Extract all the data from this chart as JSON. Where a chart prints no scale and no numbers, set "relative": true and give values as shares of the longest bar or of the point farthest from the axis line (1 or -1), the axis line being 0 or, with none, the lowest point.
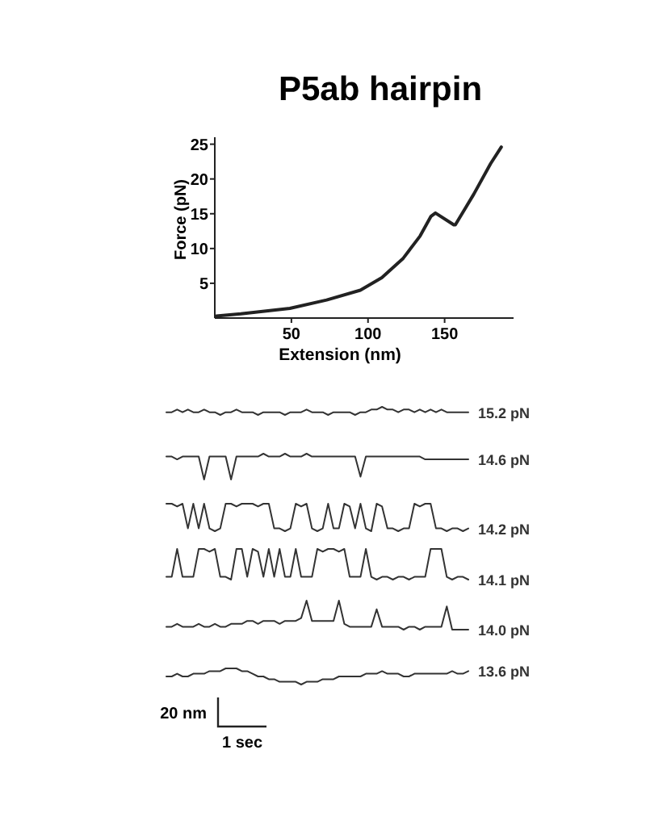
{
  "chart_data": [
    {
      "type": "line",
      "title": "P5ab hairpin",
      "xlabel": "Extension (nm)",
      "ylabel": "Force (pN)",
      "xlim": [
        0,
        195
      ],
      "ylim": [
        0,
        26
      ],
      "xticks": [
        50,
        100,
        150
      ],
      "yticks": [
        5,
        10,
        15,
        20,
        25
      ],
      "grid": false,
      "legend": false,
      "marker": "none",
      "line_style": "solid",
      "series": [
        {
          "color": "#222222",
          "x": [
            1,
            17,
            49,
            73,
            95,
            109,
            123,
            134,
            141,
            144,
            156,
            157,
            169,
            180,
            187
          ],
          "values": [
            0.3,
            0.6,
            1.4,
            2.6,
            4,
            5.8,
            8.6,
            11.8,
            14.6,
            15.1,
            13.4,
            13.4,
            17.8,
            22.2,
            24.6
          ]
        }
      ]
    },
    {
      "type": "line",
      "relative": true,
      "legend": false,
      "marker": "none",
      "line_style": "solid",
      "categories": [
        null,
        null,
        null,
        null,
        null,
        null,
        null,
        null,
        null,
        null,
        null,
        null,
        null,
        null,
        null,
        null,
        null,
        null,
        null,
        null,
        null,
        null,
        null,
        null,
        null,
        null,
        null,
        null,
        null,
        null,
        null,
        null,
        null,
        null,
        null,
        null,
        null,
        null,
        null,
        null,
        null,
        null,
        null,
        null,
        null,
        null,
        null,
        null,
        null,
        null,
        null,
        null,
        null,
        null,
        null,
        null,
        null
      ],
      "series": [
        {
          "name": "15.2 pN",
          "color": "#333333",
          "values": [
            0.33,
            0.33,
            0.67,
            0.33,
            0.67,
            0.33,
            0.33,
            0.67,
            0.33,
            0.33,
            0,
            0.33,
            0.33,
            0.67,
            0.33,
            0.33,
            0.33,
            0,
            0.33,
            0.33,
            0.33,
            0.33,
            0,
            0.33,
            0.33,
            0.33,
            0.67,
            0.33,
            0.33,
            0.33,
            0,
            0.33,
            0.33,
            0.33,
            0.33,
            0,
            0.33,
            0.33,
            0.67,
            0.67,
            1,
            0.67,
            0.67,
            0.33,
            0.67,
            0.67,
            0.33,
            0.67,
            0.33,
            0.67,
            0.33,
            0.67,
            0.33,
            0.33,
            0.33,
            0.33,
            0.33
          ]
        }
      ]
    },
    {
      "type": "line",
      "relative": true,
      "legend": false,
      "marker": "none",
      "line_style": "solid",
      "categories": [
        null,
        null,
        null,
        null,
        null,
        null,
        null,
        null,
        null,
        null,
        null,
        null,
        null,
        null,
        null,
        null,
        null,
        null,
        null,
        null,
        null,
        null,
        null,
        null,
        null,
        null,
        null,
        null,
        null,
        null,
        null,
        null,
        null,
        null,
        null,
        null,
        null,
        null,
        null,
        null,
        null,
        null,
        null,
        null,
        null,
        null,
        null,
        null,
        null,
        null,
        null,
        null,
        null,
        null,
        null,
        null,
        null
      ],
      "series": [
        {
          "name": "14.6 pN",
          "color": "#333333",
          "values": [
            0.89,
            0.89,
            0.78,
            0.89,
            0.89,
            0.89,
            0.89,
            0,
            0.89,
            0.89,
            0.89,
            0.89,
            0,
            0.89,
            0.89,
            0.89,
            0.89,
            0.89,
            1,
            0.89,
            0.89,
            0.89,
            1,
            0.89,
            0.89,
            0.89,
            1,
            0.89,
            0.89,
            0.89,
            0.89,
            0.89,
            0.89,
            0.89,
            0.89,
            0.89,
            0.11,
            0.89,
            0.89,
            0.89,
            0.89,
            0.89,
            0.89,
            0.89,
            0.89,
            0.89,
            0.89,
            0.89,
            0.78,
            0.78,
            0.78,
            0.78,
            0.78,
            0.78,
            0.78,
            0.78,
            0.78
          ]
        }
      ]
    },
    {
      "type": "line",
      "relative": true,
      "legend": false,
      "marker": "none",
      "line_style": "solid",
      "categories": [
        null,
        null,
        null,
        null,
        null,
        null,
        null,
        null,
        null,
        null,
        null,
        null,
        null,
        null,
        null,
        null,
        null,
        null,
        null,
        null,
        null,
        null,
        null,
        null,
        null,
        null,
        null,
        null,
        null,
        null,
        null,
        null,
        null,
        null,
        null,
        null,
        null,
        null,
        null,
        null,
        null,
        null,
        null,
        null,
        null,
        null,
        null,
        null,
        null,
        null,
        null,
        null,
        null,
        null,
        null,
        null,
        null
      ],
      "series": [
        {
          "name": "14.2 pN",
          "color": "#333333",
          "values": [
            1,
            1,
            0.9,
            1,
            0.1,
            1,
            0.1,
            1,
            0.1,
            0,
            0.1,
            1,
            1,
            0.9,
            1,
            1,
            1,
            0.9,
            1,
            1,
            0.1,
            0.1,
            0,
            0.1,
            1,
            0.9,
            1,
            0.1,
            0,
            0.1,
            1,
            0.1,
            0.1,
            1,
            0.9,
            0.1,
            1,
            0.1,
            0,
            1,
            0.9,
            0.1,
            0.1,
            0,
            0.1,
            0.1,
            1,
            0.9,
            1,
            1,
            0.1,
            0.1,
            0,
            0.1,
            0.1,
            0,
            0.1
          ]
        }
      ]
    },
    {
      "type": "line",
      "relative": true,
      "legend": false,
      "marker": "none",
      "line_style": "solid",
      "categories": [
        null,
        null,
        null,
        null,
        null,
        null,
        null,
        null,
        null,
        null,
        null,
        null,
        null,
        null,
        null,
        null,
        null,
        null,
        null,
        null,
        null,
        null,
        null,
        null,
        null,
        null,
        null,
        null,
        null,
        null,
        null,
        null,
        null,
        null,
        null,
        null,
        null,
        null,
        null,
        null,
        null,
        null,
        null,
        null,
        null,
        null,
        null,
        null,
        null,
        null,
        null,
        null,
        null,
        null,
        null,
        null,
        null
      ],
      "series": [
        {
          "name": "14.1 pN",
          "color": "#333333",
          "values": [
            0.09,
            0.09,
            1,
            0.09,
            0.09,
            0.09,
            1,
            1,
            0.91,
            1,
            0.09,
            0.09,
            0,
            1,
            1,
            0.09,
            1,
            0.91,
            0.09,
            1,
            0.09,
            1,
            0.09,
            0.09,
            1,
            0.09,
            0.09,
            0.09,
            1,
            0.91,
            1,
            1,
            0.91,
            1,
            0.09,
            0.09,
            0.09,
            1,
            0.09,
            0,
            0.09,
            0.09,
            0,
            0.09,
            0.09,
            0,
            0.09,
            0.09,
            0.09,
            1,
            1,
            1,
            0.09,
            0,
            0.09,
            0.09,
            0
          ]
        }
      ]
    },
    {
      "type": "line",
      "relative": true,
      "legend": false,
      "marker": "none",
      "line_style": "solid",
      "categories": [
        null,
        null,
        null,
        null,
        null,
        null,
        null,
        null,
        null,
        null,
        null,
        null,
        null,
        null,
        null,
        null,
        null,
        null,
        null,
        null,
        null,
        null,
        null,
        null,
        null,
        null,
        null,
        null,
        null,
        null,
        null,
        null,
        null,
        null,
        null,
        null,
        null,
        null,
        null,
        null,
        null,
        null,
        null,
        null,
        null,
        null,
        null,
        null,
        null,
        null,
        null,
        null,
        null,
        null,
        null,
        null,
        null
      ],
      "series": [
        {
          "name": "14.0 pN",
          "color": "#333333",
          "values": [
            0.1,
            0.1,
            0.2,
            0.1,
            0.1,
            0.1,
            0.2,
            0.1,
            0.1,
            0.2,
            0.1,
            0.1,
            0.2,
            0.2,
            0.2,
            0.3,
            0.3,
            0.2,
            0.3,
            0.3,
            0.3,
            0.2,
            0.3,
            0.3,
            0.3,
            0.4,
            1,
            0.3,
            0.3,
            0.3,
            0.3,
            0.3,
            1,
            0.2,
            0.1,
            0.1,
            0.1,
            0.1,
            0.1,
            0.7,
            0.1,
            0.1,
            0.1,
            0.1,
            0,
            0.1,
            0.1,
            0,
            0.1,
            0.1,
            0.1,
            0.1,
            0.8,
            0,
            0,
            0,
            0
          ]
        }
      ]
    },
    {
      "type": "line",
      "relative": true,
      "legend": false,
      "marker": "none",
      "line_style": "solid",
      "annotations": [
        "20 nm",
        "1 sec"
      ],
      "categories": [
        null,
        null,
        null,
        null,
        null,
        null,
        null,
        null,
        null,
        null,
        null,
        null,
        null,
        null,
        null,
        null,
        null,
        null,
        null,
        null,
        null,
        null,
        null,
        null,
        null,
        null,
        null,
        null,
        null,
        null,
        null,
        null,
        null,
        null,
        null,
        null,
        null,
        null,
        null,
        null,
        null,
        null,
        null,
        null,
        null,
        null,
        null,
        null,
        null,
        null,
        null,
        null,
        null,
        null,
        null,
        null,
        null
      ],
      "series": [
        {
          "name": "13.6 pN",
          "color": "#333333",
          "values": [
            0.5,
            0.5,
            0.67,
            0.5,
            0.5,
            0.67,
            0.67,
            0.67,
            0.83,
            0.83,
            0.83,
            1,
            1,
            1,
            0.83,
            0.83,
            0.67,
            0.5,
            0.5,
            0.33,
            0.33,
            0.17,
            0.17,
            0.17,
            0.17,
            0,
            0.17,
            0.17,
            0.17,
            0.33,
            0.33,
            0.33,
            0.5,
            0.5,
            0.5,
            0.5,
            0.5,
            0.67,
            0.67,
            0.67,
            0.83,
            0.67,
            0.67,
            0.67,
            0.5,
            0.5,
            0.67,
            0.67,
            0.67,
            0.67,
            0.67,
            0.67,
            0.67,
            0.83,
            0.67,
            0.67,
            0.83
          ]
        }
      ]
    }
  ]
}
